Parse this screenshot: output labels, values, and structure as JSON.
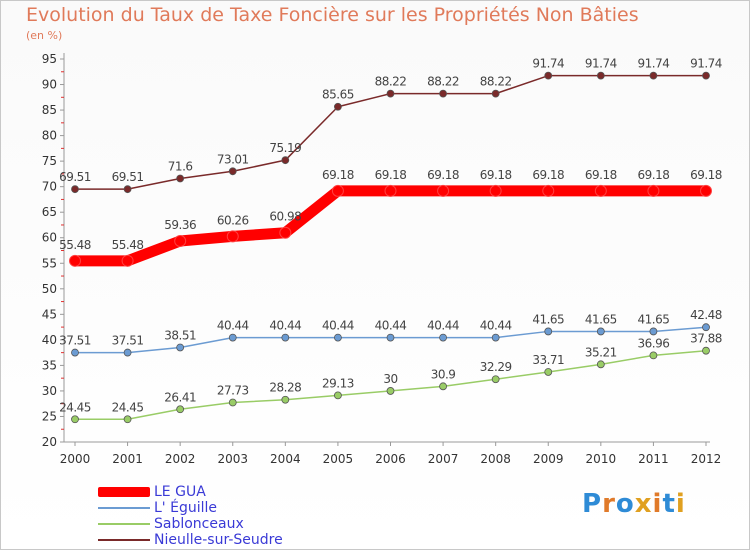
{
  "chart_data": {
    "type": "line",
    "title": "Evolution du Taux de Taxe Foncière sur les Propriétés Non Bâties",
    "ylabel": "(en %)",
    "xlabel": "",
    "x": [
      "2000",
      "2001",
      "2002",
      "2003",
      "2004",
      "2005",
      "2006",
      "2007",
      "2008",
      "2009",
      "2010",
      "2011",
      "2012"
    ],
    "ylim": [
      20,
      95
    ],
    "yticks": [
      "20",
      "25",
      "30",
      "35",
      "40",
      "45",
      "50",
      "55",
      "60",
      "65",
      "70",
      "75",
      "80",
      "85",
      "90",
      "95"
    ],
    "grid": false,
    "legend_position": "bottom-left",
    "series": [
      {
        "name": "LE GUA",
        "color": "#ff0000",
        "values": [
          55.48,
          55.48,
          59.36,
          60.26,
          60.98,
          69.18,
          69.18,
          69.18,
          69.18,
          69.18,
          69.18,
          69.18,
          69.18
        ],
        "labels": [
          "55.48",
          "55.48",
          "59.36",
          "60.26",
          "60.98",
          "69.18",
          "69.18",
          "69.18",
          "69.18",
          "69.18",
          "69.18",
          "69.18",
          "69.18"
        ]
      },
      {
        "name": "L' Éguille",
        "color": "#6b9bd2",
        "values": [
          37.51,
          37.51,
          38.51,
          40.44,
          40.44,
          40.44,
          40.44,
          40.44,
          40.44,
          41.65,
          41.65,
          41.65,
          42.48
        ],
        "labels": [
          "37.51",
          "37.51",
          "38.51",
          "40.44",
          "40.44",
          "40.44",
          "40.44",
          "40.44",
          "40.44",
          "41.65",
          "41.65",
          "41.65",
          "42.48"
        ]
      },
      {
        "name": "Sablonceaux",
        "color": "#99cc66",
        "values": [
          24.45,
          24.45,
          26.41,
          27.73,
          28.28,
          29.13,
          30,
          30.9,
          32.29,
          33.71,
          35.21,
          36.96,
          37.88
        ],
        "labels": [
          "24.45",
          "24.45",
          "26.41",
          "27.73",
          "28.28",
          "29.13",
          "30",
          "30.9",
          "32.29",
          "33.71",
          "35.21",
          "36.96",
          "37.88"
        ]
      },
      {
        "name": "Nieulle-sur-Seudre",
        "color": "#7a2a2a",
        "values": [
          69.51,
          69.51,
          71.6,
          73.01,
          75.19,
          85.65,
          88.22,
          88.22,
          88.22,
          91.74,
          91.74,
          91.74,
          91.74
        ],
        "labels": [
          "69.51",
          "69.51",
          "71.6",
          "73.01",
          "75.19",
          "85.65",
          "88.22",
          "88.22",
          "88.22",
          "91.74",
          "91.74",
          "91.74",
          "91.74"
        ]
      }
    ]
  },
  "logo": {
    "text": "Proxiti"
  }
}
